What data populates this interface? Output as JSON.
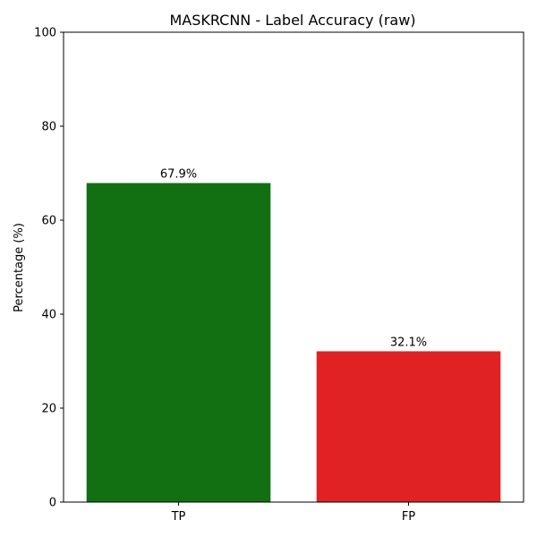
{
  "chart_data": {
    "type": "bar",
    "title": "MASKRCNN - Label Accuracy (raw)",
    "xlabel": "",
    "ylabel": "Percentage (%)",
    "categories": [
      "TP",
      "FP"
    ],
    "values": [
      67.9,
      32.1
    ],
    "data_labels": [
      "67.9%",
      "32.1%"
    ],
    "colors": [
      "#127012",
      "#e02222"
    ],
    "ylim": [
      0,
      100
    ],
    "yticks": [
      0,
      20,
      40,
      60,
      80,
      100
    ],
    "grid": false,
    "legend": "none"
  }
}
